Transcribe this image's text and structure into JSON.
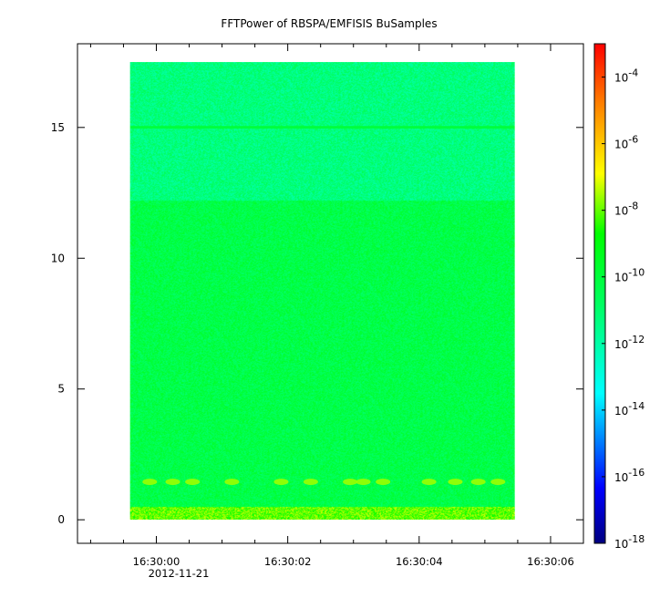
{
  "chart_data": {
    "type": "heatmap",
    "title": "FFTPower of RBSPA/EMFISIS  BuSamples",
    "xlabel": "",
    "ylabel": "",
    "x_ticks": [
      {
        "label": "16:30:00",
        "t": 0
      },
      {
        "label": "16:30:02",
        "t": 2
      },
      {
        "label": "16:30:04",
        "t": 4
      },
      {
        "label": "16:30:06",
        "t": 6
      }
    ],
    "x_minor_ticks": [
      -1,
      -0.5,
      0.5,
      1,
      1.5,
      2.5,
      3,
      3.5,
      4.5,
      5,
      5.5
    ],
    "x_date_label": "2012-11-21",
    "xlim": [
      -1.2,
      6.5
    ],
    "data_time_range": [
      -0.4,
      5.45
    ],
    "y_ticks": [
      0,
      5,
      10,
      15
    ],
    "ylim": [
      -0.9,
      18.2
    ],
    "data_y_range": [
      0,
      17.5
    ],
    "colorbar": {
      "scale": "log",
      "range": [
        1e-18,
        0.001
      ],
      "tick_exponents": [
        -18,
        -16,
        -14,
        -12,
        -10,
        -8,
        -6,
        -4
      ],
      "tick_base": "10"
    },
    "features": {
      "band_low_y": [
        0,
        0.5
      ],
      "band_low_level_exp": -8,
      "lower_region_y": [
        0.5,
        12.2
      ],
      "lower_region_level_exp": -10.3,
      "upper_region_y": [
        12.2,
        17.5
      ],
      "upper_region_level_exp": -11.3,
      "line_y": 15,
      "burst_y": 1.45,
      "burst_level_exp": -7.6,
      "burst_times": [
        -0.1,
        0.25,
        0.55,
        1.15,
        1.9,
        2.35,
        2.95,
        3.15,
        3.45,
        4.15,
        4.55,
        4.9,
        5.2
      ]
    }
  }
}
